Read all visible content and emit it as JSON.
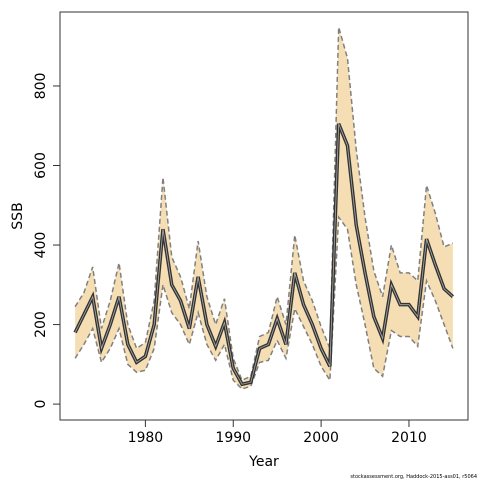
{
  "chart_data": {
    "type": "line",
    "xlabel": "Year",
    "ylabel": "SSB",
    "footnote": "stockassessment.org, Haddock-2015-ass01, r5064",
    "x": [
      1972,
      1973,
      1974,
      1975,
      1976,
      1977,
      1978,
      1979,
      1980,
      1981,
      1982,
      1983,
      1984,
      1985,
      1986,
      1987,
      1988,
      1989,
      1990,
      1991,
      1992,
      1993,
      1994,
      1995,
      1996,
      1997,
      1998,
      1999,
      2000,
      2001,
      2002,
      2003,
      2004,
      2005,
      2006,
      2007,
      2008,
      2009,
      2010,
      2011,
      2012,
      2013,
      2014,
      2015
    ],
    "values": [
      180,
      225,
      270,
      140,
      200,
      270,
      150,
      105,
      120,
      200,
      440,
      300,
      260,
      190,
      320,
      200,
      145,
      205,
      90,
      50,
      55,
      140,
      150,
      215,
      150,
      330,
      250,
      200,
      140,
      95,
      705,
      650,
      450,
      330,
      220,
      165,
      300,
      250,
      250,
      220,
      415,
      350,
      290,
      270
    ],
    "lower": [
      115,
      150,
      190,
      105,
      140,
      190,
      100,
      80,
      85,
      140,
      300,
      230,
      200,
      150,
      230,
      150,
      110,
      150,
      60,
      38,
      45,
      105,
      110,
      160,
      115,
      240,
      195,
      150,
      95,
      60,
      470,
      440,
      300,
      200,
      90,
      70,
      185,
      170,
      170,
      145,
      310,
      260,
      200,
      140
    ],
    "upper": [
      245,
      280,
      345,
      190,
      260,
      355,
      200,
      140,
      155,
      260,
      570,
      370,
      320,
      240,
      410,
      270,
      200,
      265,
      115,
      60,
      70,
      170,
      180,
      270,
      200,
      425,
      310,
      260,
      195,
      140,
      948,
      870,
      640,
      470,
      335,
      270,
      400,
      330,
      330,
      310,
      550,
      480,
      395,
      405
    ],
    "color": "#333333",
    "band_color": "#f5deb3",
    "bound_color": "#808080",
    "xlim": [
      1970.28,
      2016.72
    ],
    "ylim": [
      -40,
      986
    ],
    "xticks": [
      1980,
      1990,
      2000,
      2010
    ],
    "yticks": [
      0,
      200,
      400,
      600,
      800
    ]
  }
}
